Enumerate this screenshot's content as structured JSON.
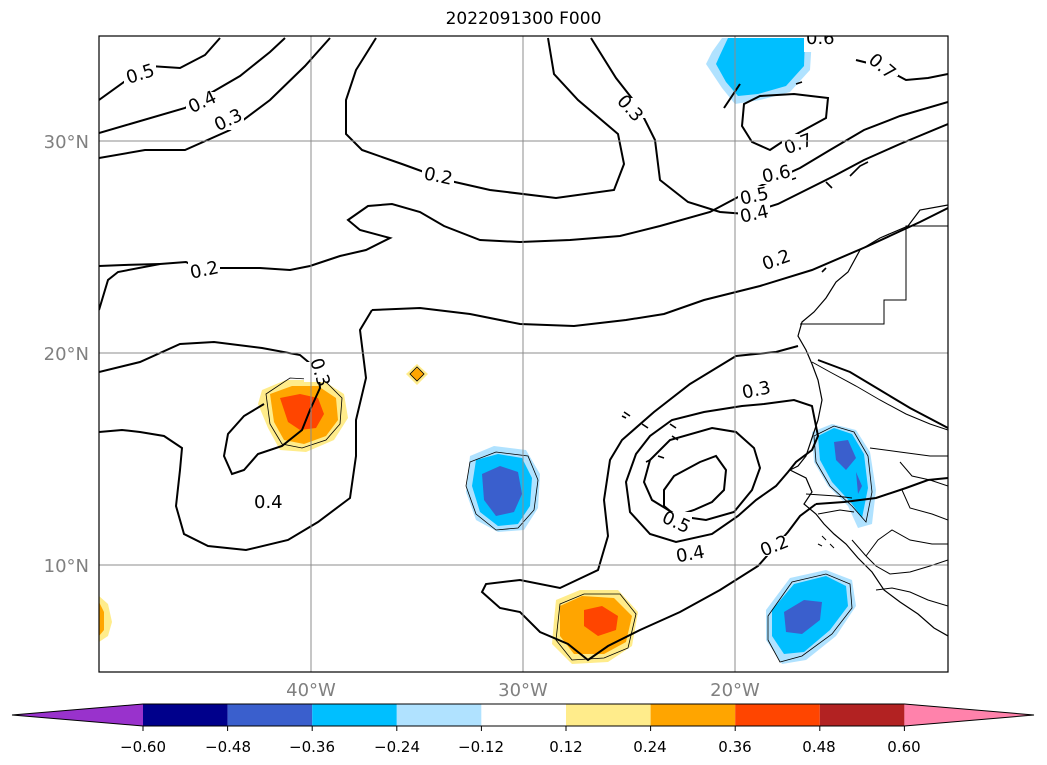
{
  "title": "2022091300 F000",
  "map": {
    "lat_labels": [
      "30°N",
      "20°N",
      "10°N"
    ],
    "lon_labels": [
      "40°W",
      "30°W",
      "20°W"
    ],
    "contour_labels": [
      "0.5",
      "0.4",
      "0.3",
      "0.2",
      "0.3",
      "0.6",
      "0.7",
      "0.7",
      "0.6",
      "0.5",
      "0.4",
      "0.2",
      "0.2",
      "0.3",
      "0.4",
      "0.3",
      "0.5",
      "0.4",
      "0.2"
    ]
  },
  "colorbar": {
    "ticks": [
      "−0.60",
      "−0.48",
      "−0.36",
      "−0.24",
      "−0.12",
      "0.12",
      "0.24",
      "0.36",
      "0.48",
      "0.60"
    ],
    "colors": [
      "#9932cc",
      "#00008b",
      "#3a5fcd",
      "#00bfff",
      "#b0e2ff",
      "#ffffff",
      "#ffec8b",
      "#ffa500",
      "#ff4500",
      "#b22222",
      "#ff82ab"
    ]
  }
}
